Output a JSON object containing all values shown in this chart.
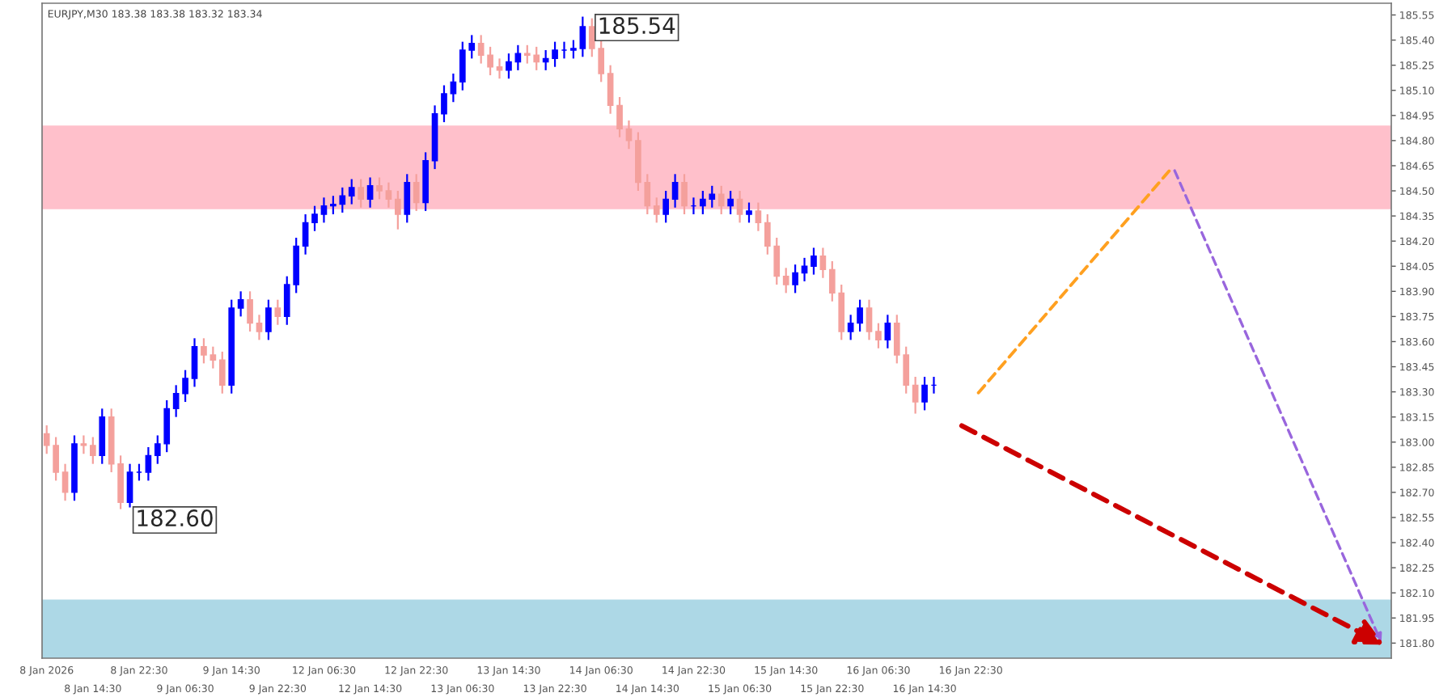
{
  "chart_data": {
    "type": "candlestick",
    "title": "EURJPY,M30 183.38 183.38 183.32 183.34",
    "categories": [
      "8 Jan 2026",
      null,
      null,
      null,
      null,
      "8 Jan 14:30",
      null,
      null,
      null,
      null,
      "8 Jan 22:30",
      null,
      null,
      null,
      null,
      "9 Jan 06:30",
      null,
      null,
      null,
      null,
      "9 Jan 14:30",
      null,
      null,
      null,
      null,
      "9 Jan 22:30",
      null,
      null,
      null,
      null,
      "12 Jan 06:30",
      null,
      null,
      null,
      null,
      "12 Jan 14:30",
      null,
      null,
      null,
      null,
      "12 Jan 22:30",
      null,
      null,
      null,
      null,
      "13 Jan 06:30",
      null,
      null,
      null,
      null,
      "13 Jan 14:30",
      null,
      null,
      null,
      null,
      "13 Jan 22:30",
      null,
      null,
      null,
      null,
      "14 Jan 06:30",
      null,
      null,
      null,
      null,
      "14 Jan 14:30",
      null,
      null,
      null,
      null,
      "14 Jan 22:30",
      null,
      null,
      null,
      null,
      "15 Jan 06:30",
      null,
      null,
      null,
      null,
      "15 Jan 14:30",
      null,
      null,
      null,
      null,
      "15 Jan 22:30",
      null,
      null,
      null,
      null,
      "16 Jan 06:30",
      null,
      null,
      null,
      null,
      "16 Jan 14:30",
      null,
      null,
      null,
      null,
      "16 Jan 22:30",
      null,
      null,
      null,
      null,
      null,
      null,
      null,
      null,
      null,
      null,
      null,
      null,
      null,
      null,
      null,
      null,
      null,
      null,
      null,
      null,
      null,
      null,
      null,
      null,
      null,
      null,
      null,
      null,
      null,
      null,
      null,
      null,
      null,
      null,
      null,
      null,
      null,
      null,
      null,
      null,
      null,
      null,
      null,
      null,
      null
    ],
    "ohlc": [
      [
        183.05,
        183.1,
        182.93,
        182.98
      ],
      [
        182.98,
        183.03,
        182.77,
        182.82
      ],
      [
        182.82,
        182.87,
        182.65,
        182.7
      ],
      [
        182.7,
        183.04,
        182.65,
        182.99
      ],
      [
        182.99,
        183.04,
        182.93,
        182.98
      ],
      [
        182.98,
        183.03,
        182.87,
        182.92
      ],
      [
        182.92,
        183.2,
        182.87,
        183.15
      ],
      [
        183.15,
        183.2,
        182.82,
        182.87
      ],
      [
        182.87,
        182.92,
        182.6,
        182.64
      ],
      [
        182.64,
        182.87,
        182.61,
        182.82
      ],
      [
        182.82,
        182.87,
        182.77,
        182.82
      ],
      [
        182.82,
        182.97,
        182.77,
        182.92
      ],
      [
        182.92,
        183.04,
        182.87,
        182.99
      ],
      [
        182.99,
        183.25,
        182.94,
        183.2
      ],
      [
        183.2,
        183.34,
        183.15,
        183.29
      ],
      [
        183.29,
        183.43,
        183.24,
        183.38
      ],
      [
        183.38,
        183.62,
        183.33,
        183.57
      ],
      [
        183.57,
        183.62,
        183.47,
        183.52
      ],
      [
        183.52,
        183.57,
        183.44,
        183.49
      ],
      [
        183.49,
        183.54,
        183.29,
        183.34
      ],
      [
        183.34,
        183.85,
        183.29,
        183.8
      ],
      [
        183.8,
        183.9,
        183.75,
        183.85
      ],
      [
        183.85,
        183.9,
        183.66,
        183.71
      ],
      [
        183.71,
        183.76,
        183.61,
        183.66
      ],
      [
        183.66,
        183.85,
        183.61,
        183.8
      ],
      [
        183.8,
        183.85,
        183.7,
        183.75
      ],
      [
        183.75,
        183.99,
        183.7,
        183.94
      ],
      [
        183.94,
        184.22,
        183.89,
        184.17
      ],
      [
        184.17,
        184.36,
        184.12,
        184.31
      ],
      [
        184.31,
        184.41,
        184.26,
        184.36
      ],
      [
        184.36,
        184.46,
        184.31,
        184.41
      ],
      [
        184.41,
        184.47,
        184.36,
        184.42
      ],
      [
        184.42,
        184.52,
        184.37,
        184.47
      ],
      [
        184.47,
        184.57,
        184.42,
        184.52
      ],
      [
        184.52,
        184.57,
        184.4,
        184.45
      ],
      [
        184.45,
        184.58,
        184.4,
        184.53
      ],
      [
        184.53,
        184.58,
        184.45,
        184.5
      ],
      [
        184.5,
        184.55,
        184.4,
        184.45
      ],
      [
        184.45,
        184.5,
        184.27,
        184.36
      ],
      [
        184.36,
        184.6,
        184.31,
        184.55
      ],
      [
        184.55,
        184.6,
        184.38,
        184.43
      ],
      [
        184.43,
        184.73,
        184.38,
        184.68
      ],
      [
        184.68,
        185.01,
        184.63,
        184.96
      ],
      [
        184.96,
        185.13,
        184.91,
        185.08
      ],
      [
        185.08,
        185.2,
        185.03,
        185.15
      ],
      [
        185.15,
        185.39,
        185.1,
        185.34
      ],
      [
        185.34,
        185.43,
        185.29,
        185.38
      ],
      [
        185.38,
        185.43,
        185.26,
        185.31
      ],
      [
        185.31,
        185.36,
        185.19,
        185.24
      ],
      [
        185.24,
        185.29,
        185.17,
        185.22
      ],
      [
        185.22,
        185.32,
        185.17,
        185.27
      ],
      [
        185.27,
        185.37,
        185.22,
        185.32
      ],
      [
        185.32,
        185.37,
        185.26,
        185.31
      ],
      [
        185.31,
        185.36,
        185.22,
        185.27
      ],
      [
        185.27,
        185.34,
        185.22,
        185.29
      ],
      [
        185.29,
        185.39,
        185.24,
        185.34
      ],
      [
        185.34,
        185.39,
        185.29,
        185.34
      ],
      [
        185.34,
        185.4,
        185.29,
        185.35
      ],
      [
        185.35,
        185.54,
        185.3,
        185.48
      ],
      [
        185.48,
        185.53,
        185.3,
        185.35
      ],
      [
        185.35,
        185.4,
        185.15,
        185.2
      ],
      [
        185.2,
        185.25,
        184.96,
        185.01
      ],
      [
        185.01,
        185.06,
        184.82,
        184.87
      ],
      [
        184.87,
        184.92,
        184.75,
        184.8
      ],
      [
        184.8,
        184.85,
        184.5,
        184.55
      ],
      [
        184.55,
        184.6,
        184.36,
        184.41
      ],
      [
        184.41,
        184.46,
        184.31,
        184.36
      ],
      [
        184.36,
        184.5,
        184.31,
        184.45
      ],
      [
        184.45,
        184.6,
        184.4,
        184.55
      ],
      [
        184.55,
        184.6,
        184.36,
        184.41
      ],
      [
        184.41,
        184.46,
        184.36,
        184.41
      ],
      [
        184.41,
        184.5,
        184.36,
        184.45
      ],
      [
        184.45,
        184.53,
        184.4,
        184.48
      ],
      [
        184.48,
        184.53,
        184.36,
        184.41
      ],
      [
        184.41,
        184.5,
        184.36,
        184.45
      ],
      [
        184.45,
        184.5,
        184.31,
        184.36
      ],
      [
        184.36,
        184.43,
        184.31,
        184.38
      ],
      [
        184.38,
        184.43,
        184.26,
        184.31
      ],
      [
        184.31,
        184.36,
        184.12,
        184.17
      ],
      [
        184.17,
        184.22,
        183.94,
        183.99
      ],
      [
        183.99,
        184.04,
        183.89,
        183.94
      ],
      [
        183.94,
        184.06,
        183.89,
        184.01
      ],
      [
        184.01,
        184.1,
        183.96,
        184.05
      ],
      [
        184.05,
        184.16,
        184.0,
        184.11
      ],
      [
        184.11,
        184.16,
        183.98,
        184.03
      ],
      [
        184.03,
        184.08,
        183.84,
        183.89
      ],
      [
        183.89,
        183.94,
        183.61,
        183.66
      ],
      [
        183.66,
        183.76,
        183.61,
        183.71
      ],
      [
        183.71,
        183.85,
        183.66,
        183.8
      ],
      [
        183.8,
        183.85,
        183.61,
        183.66
      ],
      [
        183.66,
        183.71,
        183.56,
        183.61
      ],
      [
        183.61,
        183.76,
        183.56,
        183.71
      ],
      [
        183.71,
        183.76,
        183.47,
        183.52
      ],
      [
        183.52,
        183.57,
        183.29,
        183.34
      ],
      [
        183.34,
        183.39,
        183.17,
        183.24
      ],
      [
        183.24,
        183.39,
        183.19,
        183.34
      ],
      [
        183.34,
        183.39,
        183.29,
        183.34
      ],
      null,
      null,
      null,
      null,
      null,
      null,
      null,
      null,
      null,
      null,
      null,
      null,
      null,
      null,
      null,
      null,
      null,
      null,
      null,
      null,
      null,
      null,
      null,
      null,
      null,
      null,
      null,
      null,
      null,
      null,
      null,
      null,
      null,
      null,
      null,
      null,
      null,
      null,
      null,
      null,
      null,
      null,
      null,
      null,
      null,
      null,
      null,
      null,
      null
    ],
    "colors": [
      "#f4a09c",
      "#f4a09c",
      "#f4a09c",
      "#0000ff",
      "#f4a09c",
      "#f4a09c",
      "#0000ff",
      "#f4a09c",
      "#f4a09c",
      "#0000ff",
      "#0000ff",
      "#0000ff",
      "#0000ff",
      "#0000ff",
      "#0000ff",
      "#0000ff",
      "#0000ff",
      "#f4a09c",
      "#f4a09c",
      "#f4a09c",
      "#0000ff",
      "#0000ff",
      "#f4a09c",
      "#f4a09c",
      "#0000ff",
      "#f4a09c",
      "#0000ff",
      "#0000ff",
      "#0000ff",
      "#0000ff",
      "#0000ff",
      "#0000ff",
      "#0000ff",
      "#0000ff",
      "#f4a09c",
      "#0000ff",
      "#f4a09c",
      "#f4a09c",
      "#f4a09c",
      "#0000ff",
      "#f4a09c",
      "#0000ff",
      "#0000ff",
      "#0000ff",
      "#0000ff",
      "#0000ff",
      "#0000ff",
      "#f4a09c",
      "#f4a09c",
      "#f4a09c",
      "#0000ff",
      "#0000ff",
      "#f4a09c",
      "#f4a09c",
      "#0000ff",
      "#0000ff",
      "#0000ff",
      "#0000ff",
      "#0000ff",
      "#f4a09c",
      "#f4a09c",
      "#f4a09c",
      "#f4a09c",
      "#f4a09c",
      "#f4a09c",
      "#f4a09c",
      "#f4a09c",
      "#0000ff",
      "#0000ff",
      "#f4a09c",
      "#0000ff",
      "#0000ff",
      "#0000ff",
      "#f4a09c",
      "#0000ff",
      "#f4a09c",
      "#0000ff",
      "#f4a09c",
      "#f4a09c",
      "#f4a09c",
      "#f4a09c",
      "#0000ff",
      "#0000ff",
      "#0000ff",
      "#f4a09c",
      "#f4a09c",
      "#f4a09c",
      "#0000ff",
      "#0000ff",
      "#f4a09c",
      "#f4a09c",
      "#0000ff",
      "#f4a09c",
      "#f4a09c",
      "#f4a09c",
      "#0000ff",
      "#0000ff",
      null,
      null,
      null,
      null,
      null,
      null,
      null,
      null,
      null,
      null,
      null,
      null,
      null,
      null,
      null,
      null,
      null,
      null,
      null,
      null,
      null,
      null,
      null,
      null,
      null,
      null,
      null,
      null,
      null,
      null,
      null,
      null,
      null,
      null,
      null,
      null,
      null,
      null,
      null,
      null,
      null,
      null,
      null,
      null,
      null,
      null,
      null,
      null,
      null
    ],
    "ylim": [
      181.71,
      185.62
    ],
    "yticks": [
      {
        "value": 181.8,
        "label": "181.80"
      },
      181.95,
      {
        "value": 182.1,
        "label": "182.10"
      },
      182.25,
      {
        "value": 182.4,
        "label": "182.40"
      },
      182.55,
      {
        "value": 182.7,
        "label": "182.70"
      },
      182.85,
      {
        "value": 183,
        "label": "183.00"
      },
      183.15,
      {
        "value": 183.3,
        "label": "183.30"
      },
      183.45,
      {
        "value": 183.6,
        "label": "183.60"
      },
      183.75,
      {
        "value": 183.9,
        "label": "183.90"
      },
      184.05,
      {
        "value": 184.2,
        "label": "184.20"
      },
      184.35,
      {
        "value": 184.5,
        "label": "184.50"
      },
      184.65,
      {
        "value": 184.8,
        "label": "184.80"
      },
      184.95,
      {
        "value": 185.1,
        "label": "185.10"
      },
      185.25,
      {
        "value": 185.4,
        "label": "185.40"
      },
      185.55
    ],
    "bands": [
      {
        "axis": "y",
        "from": 184.39,
        "to": 184.89,
        "color": "#ffc0cb"
      },
      {
        "axis": "y",
        "from": 181.71,
        "to": 182.06,
        "color": "#add8e6"
      }
    ],
    "annotations": [
      "185.54",
      "182.60"
    ]
  }
}
